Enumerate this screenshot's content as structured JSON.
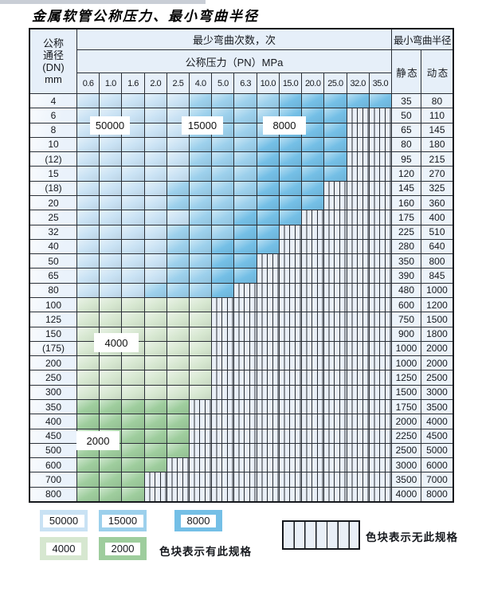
{
  "page": {
    "title": "金属软管公称压力、最小弯曲半径"
  },
  "colors": {
    "c50000": "#c9e2f4",
    "c15000": "#9cd0ec",
    "c8000": "#74bfe6",
    "c4000": "#d6e7d0",
    "c2000": "#9ecd9d",
    "grid_line": "#2a2f36",
    "header_bg": "#e6eff9",
    "hatch_bg": "#e9eff7"
  },
  "table": {
    "header": {
      "dn_lines": [
        "公称",
        "通径",
        "(DN)",
        "mm"
      ],
      "bend_cycles": "最少弯曲次数，次",
      "pressure": "公称压力（PN）MPa",
      "min_radius": "最小弯曲半径",
      "static_label": "静 态",
      "dynamic_label": "动 态"
    },
    "pressures": [
      "0.6",
      "1.0",
      "1.6",
      "2.0",
      "2.5",
      "4.0",
      "5.0",
      "6.3",
      "10.0",
      "15.0",
      "20.0",
      "25.0",
      "32.0",
      "35.0"
    ],
    "tone_meaning": {
      "L": "50000次",
      "M": "15000次",
      "D": "8000次",
      "G": "4000次",
      "g": "2000次",
      "X": "无此规格"
    },
    "rows": [
      {
        "dn": "4",
        "cells": "LLLLLMMMMDDDDD",
        "static": "35",
        "dynamic": "80"
      },
      {
        "dn": "6",
        "cells": "LLLLLMMMMDDDXX",
        "static": "50",
        "dynamic": "110"
      },
      {
        "dn": "8",
        "cells": "LLLLLMMMMDDDXX",
        "static": "65",
        "dynamic": "145"
      },
      {
        "dn": "10",
        "cells": "LLLLLMMMDDDDXX",
        "static": "80",
        "dynamic": "180"
      },
      {
        "dn": "(12)",
        "cells": "LLLLLMMMDDDDXX",
        "static": "95",
        "dynamic": "215"
      },
      {
        "dn": "15",
        "cells": "LLLLLMMMDDDDXX",
        "static": "120",
        "dynamic": "270"
      },
      {
        "dn": "(18)",
        "cells": "LLLLMMMMDDDXXX",
        "static": "145",
        "dynamic": "325"
      },
      {
        "dn": "20",
        "cells": "LLLLMMMMDDDXXX",
        "static": "160",
        "dynamic": "360"
      },
      {
        "dn": "25",
        "cells": "LLLLLMMDDDXXXX",
        "static": "175",
        "dynamic": "400"
      },
      {
        "dn": "32",
        "cells": "LLLLMMMDDXXXXX",
        "static": "225",
        "dynamic": "510"
      },
      {
        "dn": "40",
        "cells": "LLLLMMDDDXXXXX",
        "static": "280",
        "dynamic": "640"
      },
      {
        "dn": "50",
        "cells": "LLLLMMDDXXXXXX",
        "static": "350",
        "dynamic": "800"
      },
      {
        "dn": "65",
        "cells": "LLLLMMDDXXXXXX",
        "static": "390",
        "dynamic": "845"
      },
      {
        "dn": "80",
        "cells": "LLLMMMDXXXXXXX",
        "static": "480",
        "dynamic": "1000"
      },
      {
        "dn": "100",
        "cells": "GGGGGGXXXXXXXX",
        "static": "600",
        "dynamic": "1200"
      },
      {
        "dn": "125",
        "cells": "GGGGGGXXXXXXXX",
        "static": "750",
        "dynamic": "1500"
      },
      {
        "dn": "150",
        "cells": "GGGGGGXXXXXXXX",
        "static": "900",
        "dynamic": "1800"
      },
      {
        "dn": "(175)",
        "cells": "GGGGGGXXXXXXXX",
        "static": "1000",
        "dynamic": "2000"
      },
      {
        "dn": "200",
        "cells": "GGGGGGXXXXXXXX",
        "static": "1000",
        "dynamic": "2000"
      },
      {
        "dn": "250",
        "cells": "GGGGGGXXXXXXXX",
        "static": "1250",
        "dynamic": "2500"
      },
      {
        "dn": "300",
        "cells": "GGGGGGXXXXXXXX",
        "static": "1500",
        "dynamic": "3000"
      },
      {
        "dn": "350",
        "cells": "gggggXXXXXXXXX",
        "static": "1750",
        "dynamic": "3500"
      },
      {
        "dn": "400",
        "cells": "gggggXXXXXXXXX",
        "static": "2000",
        "dynamic": "4000"
      },
      {
        "dn": "450",
        "cells": "gggggXXXXXXXXX",
        "static": "2250",
        "dynamic": "4500"
      },
      {
        "dn": "500",
        "cells": "gggggXXXXXXXXX",
        "static": "2500",
        "dynamic": "5000"
      },
      {
        "dn": "600",
        "cells": "ggggXXXXXXXXXX",
        "static": "3000",
        "dynamic": "6000"
      },
      {
        "dn": "700",
        "cells": "gggXXXXXXXXXXX",
        "static": "3500",
        "dynamic": "7000"
      },
      {
        "dn": "800",
        "cells": "gggXXXXXXXXXXX",
        "static": "4000",
        "dynamic": "8000"
      }
    ],
    "region_labels": {
      "r50000": "50000",
      "r15000": "15000",
      "r8000": "8000",
      "r4000": "4000",
      "r2000": "2000"
    }
  },
  "legend": {
    "items": [
      {
        "label": "50000"
      },
      {
        "label": "15000"
      },
      {
        "label": "8000"
      },
      {
        "label": "4000"
      },
      {
        "label": "2000"
      }
    ],
    "has_spec": "色块表示有此规格",
    "no_spec": "色块表示无此规格"
  }
}
